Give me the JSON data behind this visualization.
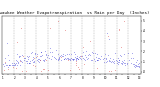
{
  "title": "Milwaukee Weather Evapotranspiration  vs Rain per Day  (Inches)",
  "title_fontsize": 3.0,
  "bg_color": "#ffffff",
  "et_color": "#0000cc",
  "rain_color": "#cc0000",
  "grid_color": "#888888",
  "ylim": [
    -0.02,
    0.55
  ],
  "n_days": 365,
  "month_starts": [
    0,
    31,
    59,
    90,
    120,
    151,
    181,
    212,
    243,
    273,
    304,
    334
  ],
  "yticks": [
    0.0,
    0.1,
    0.2,
    0.3,
    0.4,
    0.5
  ],
  "ytick_labels": [
    ".0",
    ".1",
    ".2",
    ".3",
    ".4",
    ".5"
  ],
  "xtick_labels": [
    "1",
    "",
    "",
    "1",
    "",
    "",
    "2",
    "",
    "",
    "2",
    "",
    "",
    "3",
    "",
    "",
    "3",
    "",
    "",
    "4",
    "",
    "",
    "4",
    "",
    "",
    "5",
    "",
    "",
    "5",
    "",
    "",
    "6",
    "",
    "",
    "6",
    "",
    "",
    "7"
  ]
}
